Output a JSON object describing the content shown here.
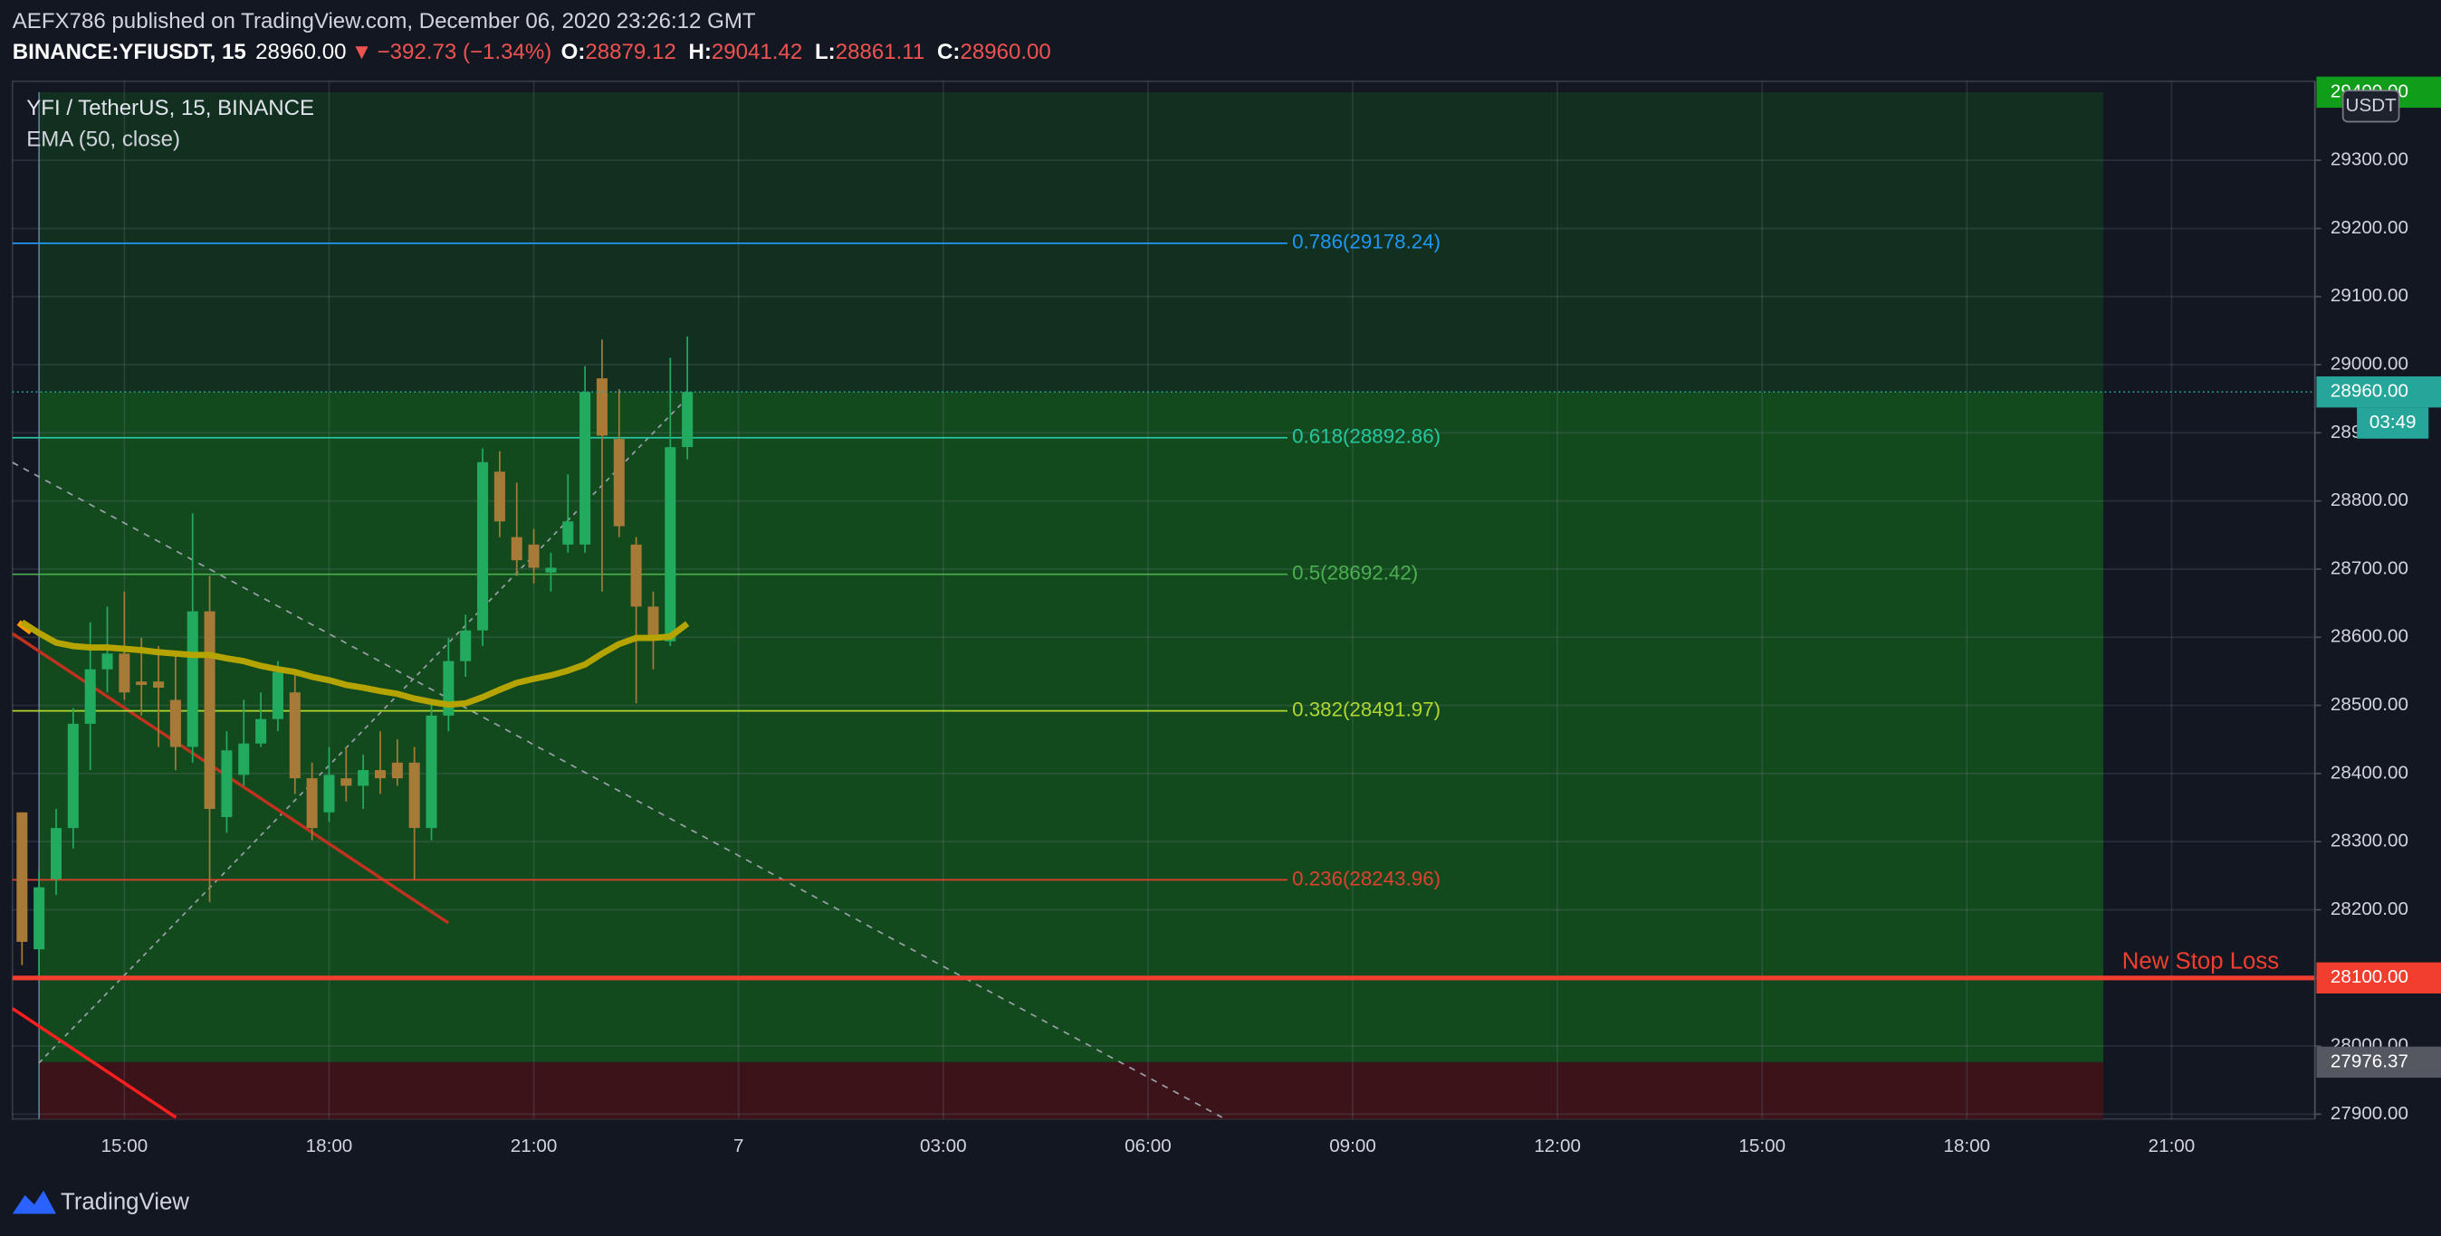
{
  "header": {
    "publisher": "AEFX786 published on TradingView.com, December 06, 2020 23:26:12 GMT",
    "symbol": "BINANCE:YFIUSDT, 15",
    "last": "28960.00",
    "arrow": "▼",
    "change": "−392.73 (−1.34%)",
    "ohlc": [
      {
        "key": "O:",
        "value": "28879.12"
      },
      {
        "key": "H:",
        "value": "29041.42"
      },
      {
        "key": "L:",
        "value": "28861.11"
      },
      {
        "key": "C:",
        "value": "28960.00"
      }
    ]
  },
  "chart_data": {
    "type": "candlestick",
    "title": "YFI / TetherUS, 15, BINANCE",
    "y_axis_label": "USDT",
    "grid": true,
    "up_color": "#22ab5e",
    "down_color": "#a87a38",
    "xlim": [
      13.36,
      47.1
    ],
    "xticks": [
      {
        "value": 15,
        "label": "15:00"
      },
      {
        "value": 18,
        "label": "18:00"
      },
      {
        "value": 21,
        "label": "21:00"
      },
      {
        "value": 24,
        "label": "7"
      },
      {
        "value": 27,
        "label": "03:00"
      },
      {
        "value": 30,
        "label": "06:00"
      },
      {
        "value": 33,
        "label": "09:00"
      },
      {
        "value": 36,
        "label": "12:00"
      },
      {
        "value": 39,
        "label": "15:00"
      },
      {
        "value": 42,
        "label": "18:00"
      },
      {
        "value": 45,
        "label": "21:00"
      }
    ],
    "ylim": [
      27893,
      29416
    ],
    "yticks": [
      {
        "value": 27900,
        "label": "27900.00"
      },
      {
        "value": 28000,
        "label": "28000.00"
      },
      {
        "value": 28100,
        "label": "28100.00"
      },
      {
        "value": 28200,
        "label": "28200.00"
      },
      {
        "value": 28300,
        "label": "28300.00"
      },
      {
        "value": 28400,
        "label": "28400.00"
      },
      {
        "value": 28500,
        "label": "28500.00"
      },
      {
        "value": 28600,
        "label": "28600.00"
      },
      {
        "value": 28700,
        "label": "28700.00"
      },
      {
        "value": 28800,
        "label": "28800.00"
      },
      {
        "value": 28900,
        "label": "28900.00"
      },
      {
        "value": 29000,
        "label": "29000.00"
      },
      {
        "value": 29100,
        "label": "29100.00"
      },
      {
        "value": 29200,
        "label": "29200.00"
      },
      {
        "value": 29300,
        "label": "29300.00"
      }
    ],
    "x": [
      13.5,
      13.75,
      14,
      14.25,
      14.5,
      14.75,
      15,
      15.25,
      15.5,
      15.75,
      16,
      16.25,
      16.5,
      16.75,
      17,
      17.25,
      17.5,
      17.75,
      18,
      18.25,
      18.5,
      18.75,
      19,
      19.25,
      19.5,
      19.75,
      20,
      20.25,
      20.5,
      20.75,
      21,
      21.25,
      21.5,
      21.75,
      22,
      22.25,
      22.5,
      22.75,
      23,
      23.25
    ],
    "open": [
      28343,
      28142,
      28245,
      28320,
      28473,
      28553,
      28576,
      28535,
      28535,
      28508,
      28439,
      28638,
      28336,
      28398,
      28444,
      28480,
      28519,
      28393,
      28343,
      28393,
      28382,
      28405,
      28416,
      28416,
      28320,
      28485,
      28565,
      28610,
      28843,
      28747,
      28736,
      28695,
      28736,
      28736,
      28980,
      28891,
      28736,
      28645,
      28594,
      28879.12
    ],
    "high": [
      28343,
      28256,
      28348,
      28496,
      28622,
      28645,
      28667,
      28599,
      28587,
      28576,
      28782,
      28690,
      28462,
      28508,
      28519,
      28565,
      28553,
      28416,
      28439,
      28439,
      28428,
      28462,
      28450,
      28439,
      28508,
      28599,
      28633,
      28877,
      28873,
      28827,
      28759,
      28724,
      28839,
      28998,
      29037,
      28964,
      28747,
      28667,
      29010,
      29041.42
    ],
    "low": [
      28119,
      28101,
      28222,
      28290,
      28405,
      28519,
      28508,
      28485,
      28439,
      28405,
      28416,
      28211,
      28313,
      28382,
      28439,
      28462,
      28370,
      28302,
      28329,
      28359,
      28348,
      28370,
      28382,
      28245,
      28302,
      28462,
      28542,
      28587,
      28747,
      28690,
      28679,
      28667,
      28724,
      28724,
      28667,
      28747,
      28503,
      28553,
      28587,
      28861.11
    ],
    "close": [
      28153,
      28233,
      28320,
      28473,
      28553,
      28576,
      28519,
      28530,
      28526,
      28439,
      28638,
      28348,
      28434,
      28444,
      28480,
      28549,
      28393,
      28320,
      28398,
      28382,
      28405,
      28393,
      28393,
      28320,
      28485,
      28565,
      28610,
      28857,
      28770,
      28713,
      28702,
      28702,
      28770,
      28960,
      28896,
      28763,
      28645,
      28599,
      28879,
      28960
    ],
    "indicators": [
      {
        "name": "EMA (50, close)",
        "color": "#b5a300",
        "values": [
          28622,
          28606,
          28592,
          28587,
          28585,
          28585,
          28583,
          28581,
          28578,
          28576,
          28574,
          28574,
          28569,
          28565,
          28558,
          28553,
          28549,
          28542,
          28537,
          28530,
          28526,
          28521,
          28517,
          28510,
          28505,
          28501,
          28503,
          28512,
          28523,
          28533,
          28539,
          28544,
          28551,
          28560,
          28576,
          28590,
          28599,
          28599,
          28601,
          28620
        ]
      }
    ],
    "fib_levels": [
      {
        "label": "0.786(29178.24)",
        "value": 29178.24,
        "color": "#2196f3"
      },
      {
        "label": "0.618(28892.86)",
        "value": 28892.86,
        "color": "#26c6a0"
      },
      {
        "label": "0.5(28692.42)",
        "value": 28692.42,
        "color": "#4caf50"
      },
      {
        "label": "0.382(28491.97)",
        "value": 28491.97,
        "color": "#b2d530"
      },
      {
        "label": "0.236(28243.96)",
        "value": 28243.96,
        "color": "#e0402f"
      }
    ],
    "stop_line": {
      "name": "New Stop Loss",
      "value": 28100,
      "value_label": "28100.00",
      "color": "#f23e2e"
    },
    "last_price": {
      "value": 28960,
      "label": "28960.00",
      "countdown": "03:49",
      "color": "#26a69a"
    },
    "position": {
      "entry": 27976.37,
      "entry_label": "27976.37",
      "target": 29400,
      "target_label": "29400.00",
      "start": 13.75,
      "end": 44
    }
  },
  "footer": {
    "brand": "TradingView"
  }
}
